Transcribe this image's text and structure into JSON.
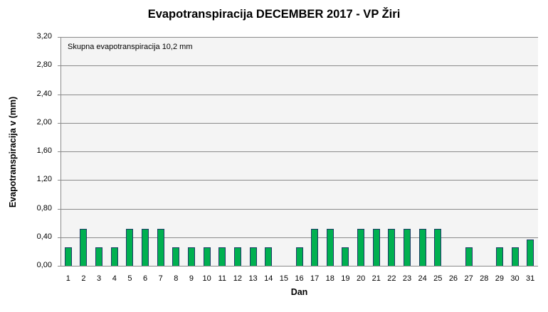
{
  "chart_data": {
    "type": "bar",
    "title": "Evapotranspiracija  DECEMBER 2017 - VP Žiri",
    "xlabel": "Dan",
    "ylabel": "Evapotranspiracija v  (mm)",
    "annotation": "Skupna evapotranspiracija  10,2 mm",
    "ylim": [
      0,
      3.2
    ],
    "yticks": [
      0,
      0.4,
      0.8,
      1.2,
      1.6,
      2.0,
      2.4,
      2.8,
      3.2
    ],
    "ytick_labels": [
      "0,00",
      "0,40",
      "0,80",
      "1,20",
      "1,60",
      "2,00",
      "2,40",
      "2,80",
      "3,20"
    ],
    "grid": true,
    "legend": null,
    "categories": [
      "1",
      "2",
      "3",
      "4",
      "5",
      "6",
      "7",
      "8",
      "9",
      "10",
      "11",
      "12",
      "13",
      "14",
      "15",
      "16",
      "17",
      "18",
      "19",
      "20",
      "21",
      "22",
      "23",
      "24",
      "25",
      "26",
      "27",
      "28",
      "29",
      "30",
      "31"
    ],
    "values": [
      0.25,
      0.51,
      0.25,
      0.25,
      0.51,
      0.51,
      0.51,
      0.25,
      0.25,
      0.25,
      0.25,
      0.25,
      0.25,
      0.25,
      0,
      0.25,
      0.51,
      0.51,
      0.25,
      0.51,
      0.51,
      0.51,
      0.51,
      0.51,
      0.51,
      0,
      0.25,
      0,
      0.25,
      0.25,
      0.36
    ],
    "colors": {
      "bar_fill": "#00b050",
      "bar_border": "#1f3a68",
      "plot_background": "#f4f4f4",
      "gridline": "#8a8a8a"
    }
  }
}
